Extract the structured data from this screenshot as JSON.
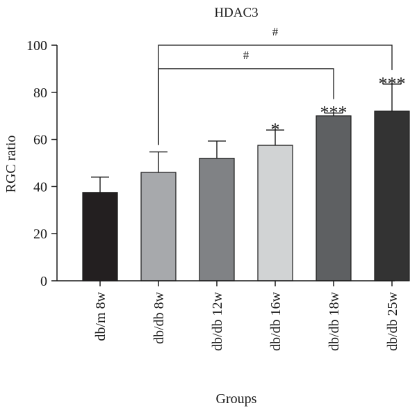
{
  "chart_data": {
    "type": "bar",
    "title": "HDAC3",
    "xlabel": "Groups",
    "ylabel": "RGC ratio",
    "ylim": [
      0,
      100
    ],
    "yticks": [
      0,
      20,
      40,
      60,
      80,
      100
    ],
    "grid": false,
    "categories": [
      "db/m 8w",
      "db/db 8w",
      "db/db 12w",
      "db/db 16w",
      "db/db 18w",
      "db/db 25w"
    ],
    "values": [
      37.5,
      46,
      52,
      57.5,
      70,
      72
    ],
    "errors": [
      6.5,
      8.7,
      7.3,
      6.5,
      1.2,
      11.5
    ],
    "colors": [
      "#231f20",
      "#a7a9ac",
      "#808285",
      "#d1d3d4",
      "#5e6062",
      "#333333"
    ],
    "annotations": [
      "",
      "",
      "",
      "*",
      "***",
      "***"
    ],
    "brackets": [
      {
        "from": 1,
        "to": 4,
        "level": 90,
        "label": "#"
      },
      {
        "from": 1,
        "to": 5,
        "level": 100,
        "label": "#"
      }
    ]
  }
}
